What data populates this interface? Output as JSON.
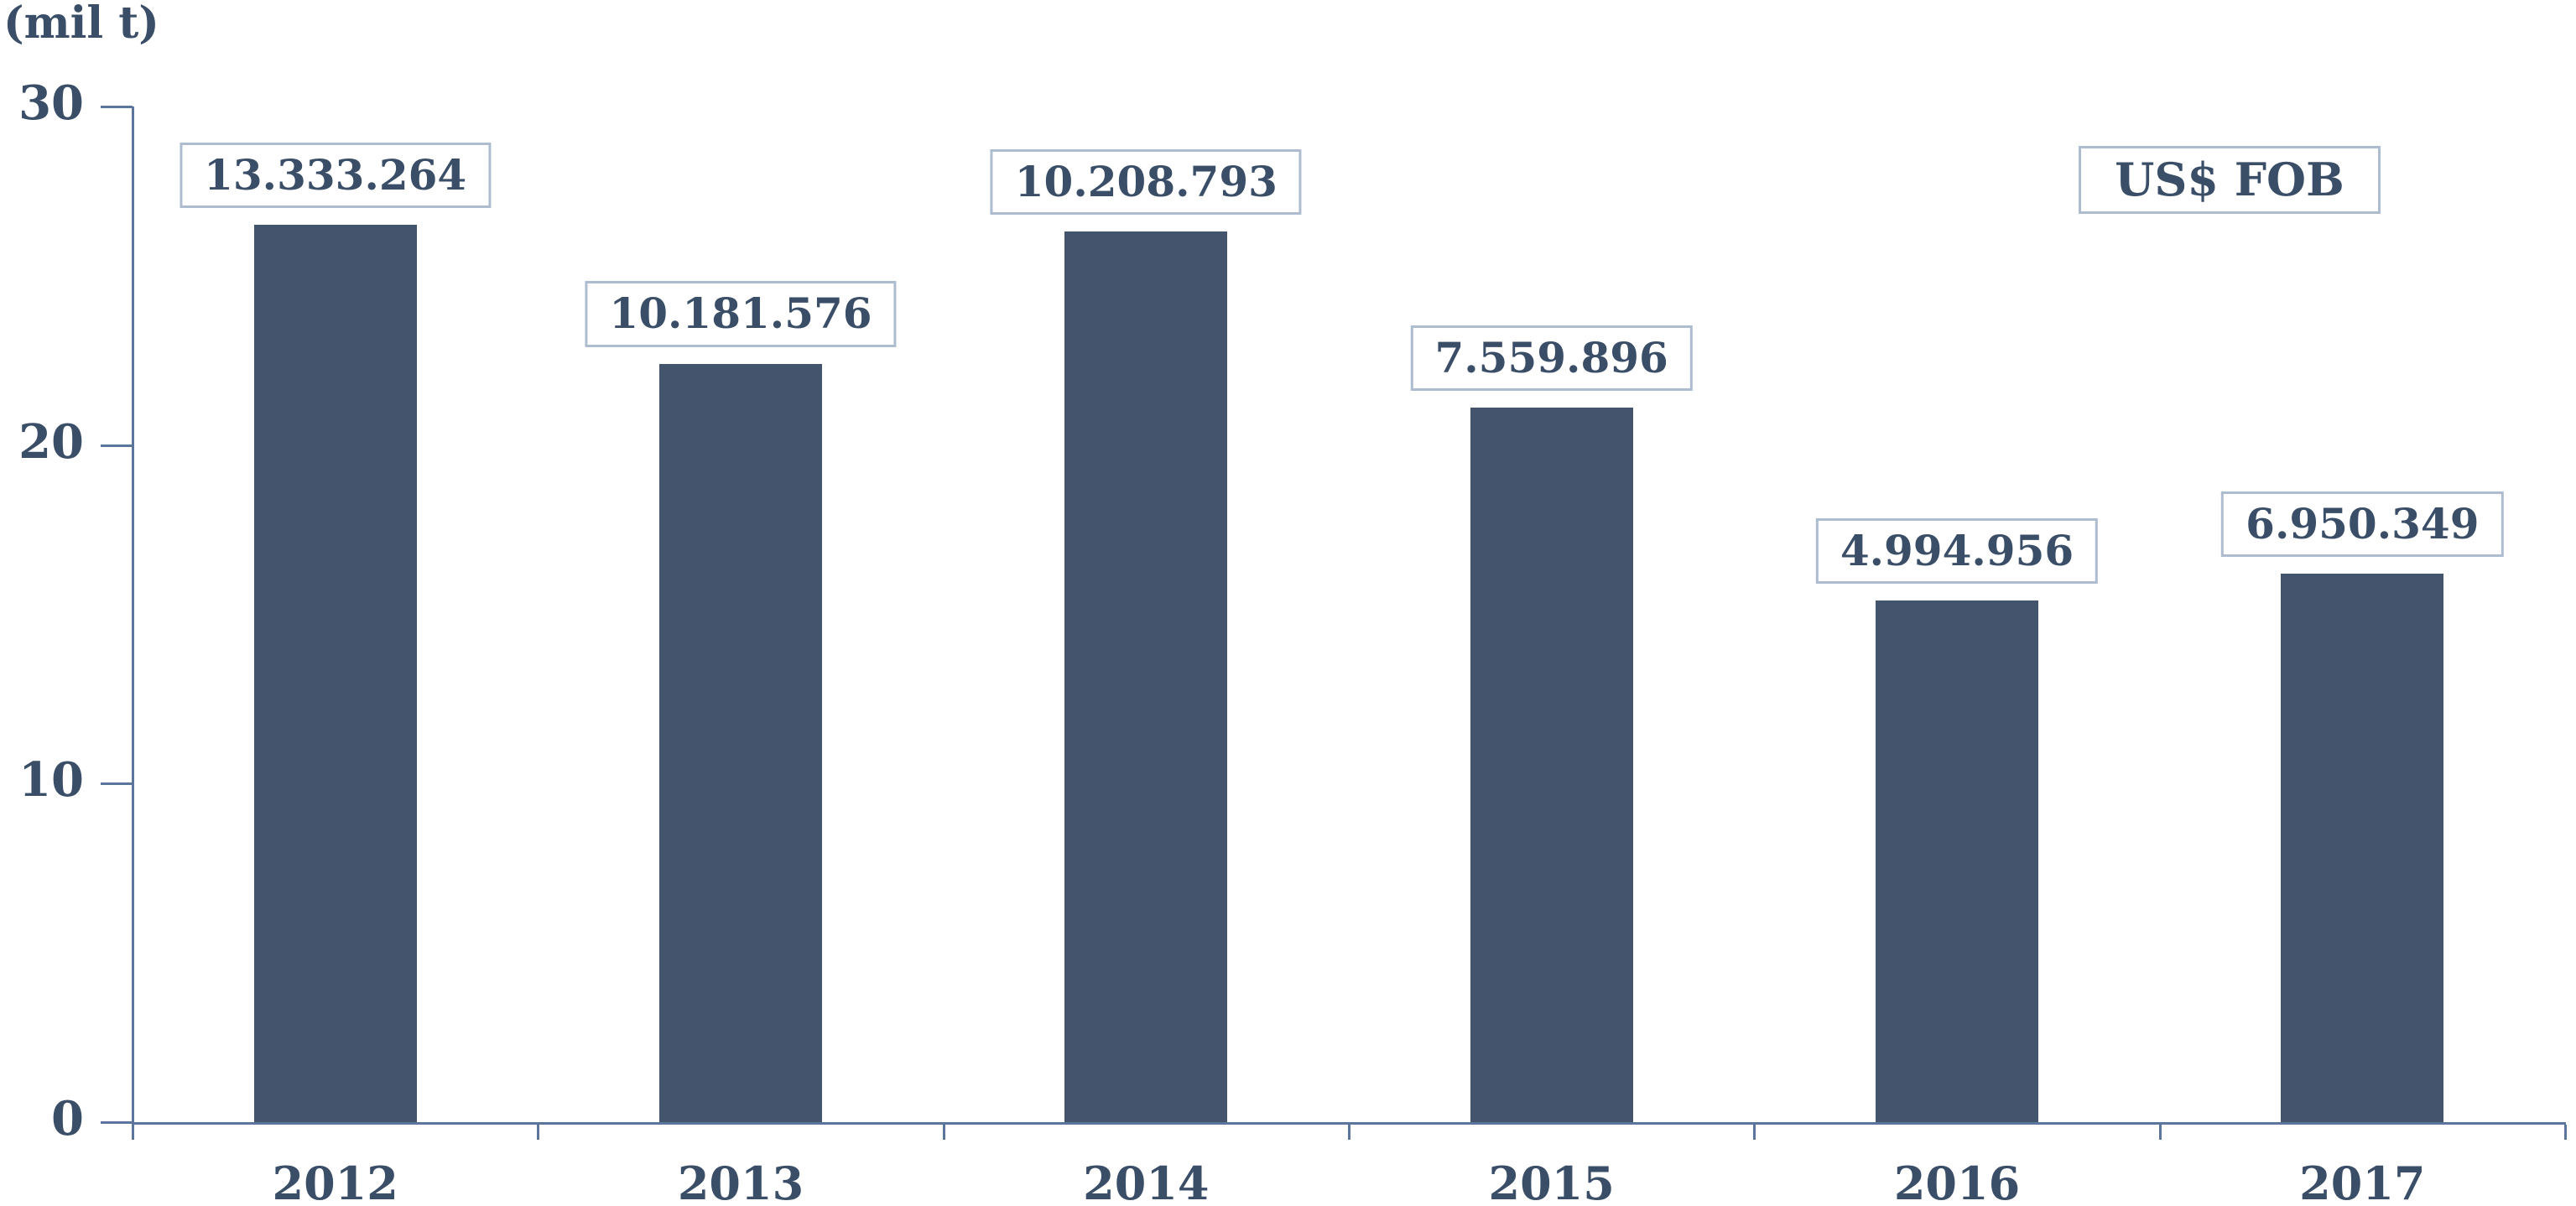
{
  "colors": {
    "bar": "#44546C",
    "text": "#3A4E68",
    "axis": "#5B759D",
    "box_border": "#AEBCD0",
    "background": "#FFFFFF"
  },
  "chart_data": {
    "type": "bar",
    "title": "",
    "ylabel": "(mil t)",
    "xlabel": "",
    "annotation": "US$ FOB",
    "categories": [
      "2012",
      "2013",
      "2014",
      "2015",
      "2016",
      "2017"
    ],
    "values": [
      26.5,
      22.4,
      26.3,
      21.1,
      15.4,
      16.2
    ],
    "bar_labels": [
      "13.333.264",
      "10.181.576",
      "10.208.793",
      "7.559.896",
      "4.994.956",
      "6.950.349"
    ],
    "ylim": [
      0,
      30
    ],
    "yticks": [
      0,
      10,
      20,
      30
    ],
    "ytick_labels": [
      "0",
      "10",
      "20",
      "30"
    ],
    "grid": false,
    "legend_position": "top-right"
  }
}
